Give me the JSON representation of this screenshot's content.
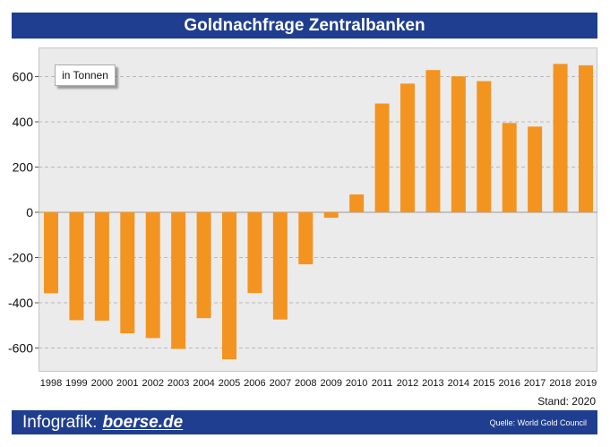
{
  "header": {
    "title": "Goldnachfrage Zentralbanken"
  },
  "unit_label": "in Tonnen",
  "stand": "Stand: 2020",
  "footer": {
    "brand_prefix": "Infografik:",
    "brand_name": "boerse.de",
    "source": "Quelle: World Gold Council"
  },
  "colors": {
    "bar": "#f39421",
    "title_bar": "#1f3e8f",
    "plot_background": "#ebebeb",
    "grid": "#b8b8b8"
  },
  "chart_data": {
    "type": "bar",
    "title": "Goldnachfrage Zentralbanken",
    "xlabel": "",
    "ylabel": "",
    "ylim": [
      -700,
      720
    ],
    "yticks": [
      -600,
      -400,
      -200,
      0,
      200,
      400,
      600
    ],
    "grid": true,
    "categories": [
      "1998",
      "1999",
      "2000",
      "2001",
      "2002",
      "2003",
      "2004",
      "2005",
      "2006",
      "2007",
      "2008",
      "2009",
      "2010",
      "2011",
      "2012",
      "2013",
      "2014",
      "2015",
      "2016",
      "2017",
      "2018",
      "2019"
    ],
    "series": [
      {
        "values": [
          -358,
          -477,
          -479,
          -535,
          -556,
          -604,
          -468,
          -650,
          -357,
          -474,
          -230,
          -24,
          79,
          481,
          569,
          629,
          601,
          580,
          395,
          379,
          656,
          650
        ]
      }
    ]
  }
}
